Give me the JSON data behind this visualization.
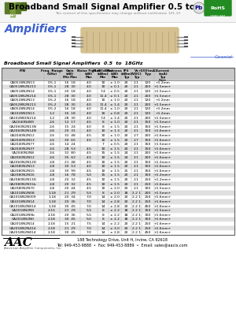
{
  "title": "Broadband Small Signal Amplifier 0.5 to 18GHz",
  "subtitle": "The content of this specification may change without notification 101-10",
  "section": "Amplifiers",
  "coaxial_label": "Coaxial",
  "table_title": "Broadband Small Signal Amplifiers  0.5  to  18GHz",
  "col_headers_line1": [
    "P/N",
    "Freq. Range",
    "Gain",
    "Noise Figure",
    "P1dB(dBm)",
    "Flatness",
    "IP3",
    "Vs",
    "+15V (mA)",
    "Current"
  ],
  "col_headers_line2": [
    "",
    "(GHz)",
    "(dB)",
    "(dB)",
    "(dBm)",
    "(dB)",
    "(dBm)",
    "(VDC)",
    "Typ",
    "(mA)"
  ],
  "col_headers_line3": [
    "",
    "",
    "Min  Max",
    "Max",
    "Min",
    "Max",
    "Typ",
    "Typ",
    "",
    "Typ"
  ],
  "col_headers_extra": [
    "",
    "",
    "",
    "",
    "",
    "",
    "",
    "",
    "",
    "Case"
  ],
  "rows": [
    [
      "CA0518N2N13",
      "0.5-1",
      "16  18",
      "4.0",
      "10",
      "± 1.0",
      "20",
      "2.1",
      "120",
      "+1.2mm"
    ],
    [
      "CA0518N2N213",
      "0.5-1",
      "28  30",
      "4.0",
      "10",
      "± 0.1",
      "20",
      "2.1",
      "200",
      "+1.5mm+"
    ],
    [
      "CA0518N2N14",
      "0.5-1",
      "20  18",
      "4.0",
      "7.4",
      "± 0.5",
      "20",
      "2.1",
      "120",
      "+1.5mm+"
    ],
    [
      "CA0518N2N214",
      "0.5-1",
      "28  30",
      "4.0",
      "11.4",
      "± 0.1",
      "20",
      "2.1",
      "200",
      "+1.5mm+"
    ],
    [
      "CA0528N2N13",
      "0.5-2",
      "16  18",
      "4.0",
      "10",
      "± 1.0",
      "20",
      "2.1",
      "120",
      "+1.2mm"
    ],
    [
      "CA0528N2N213",
      "0.5-2",
      "28  30",
      "4.0",
      "11.4",
      "± 1.4",
      "20",
      "2.1",
      "200",
      "+1.5mm+"
    ],
    [
      "CA0528N2N14",
      "0.5-2",
      "16  18",
      "4.0",
      "11.4",
      "± 1.0",
      "20",
      "2.1",
      "120",
      "+1.2mm"
    ],
    [
      "CA1028N1N13",
      "1-2",
      "16  18",
      "4.0",
      "10",
      "± 0.8",
      "20",
      "2.1",
      "120",
      "+1.2mm"
    ],
    [
      "CA1028N1N214",
      "1-2",
      "28  30",
      "4.0",
      "7.4",
      "± 1.4",
      "20",
      "2.1",
      "200",
      "+1.5mm+"
    ],
    [
      "CA2040N4N9",
      "2-6",
      "12  17",
      "4.5",
      "8",
      "± 1.0",
      "20",
      "2.1",
      "150",
      "+1.5mm+"
    ],
    [
      "CA2060N2N13N",
      "2-6",
      "15  24",
      "4.0",
      "8",
      "± 1.5",
      "20",
      "2.1",
      "150",
      "+1.5mm+"
    ],
    [
      "CA2060N2N14N",
      "2-6",
      "20  31",
      "4.0",
      "10",
      "± 1.3",
      "20",
      "2.1",
      "150",
      "+1.6mm+"
    ],
    [
      "CA2040N2N12",
      "2-6",
      "32  48",
      "4.5",
      "10",
      "± 1.0",
      "20",
      "2.7",
      "200",
      "+1.6mm+"
    ],
    [
      "CA2040N2N13",
      "2-6",
      "30  65",
      "4.5",
      "10",
      "± 1.5",
      "20",
      "2.7",
      "150",
      "+1.6mm+"
    ],
    [
      "CA2040N2N77",
      "2-6",
      "14  24",
      "",
      "7",
      "± 0.5",
      "20",
      "2.1",
      "150",
      "+1.5mm+"
    ],
    [
      "CA2040N2N37",
      "2-6",
      "28  53",
      "4.5",
      "10",
      "± 1.5",
      "20",
      "2.1",
      "150",
      "+1.6mm+"
    ],
    [
      "CA2040N2N8",
      "2-6",
      "32  80",
      "4.5",
      "15",
      "± 1.5",
      "24",
      "2.1",
      "200",
      "+1.6mm+"
    ],
    [
      "CA2060N2N12",
      "2-6",
      "35  62",
      "4.5",
      "10",
      "± 1.5",
      "24",
      "2.1",
      "200",
      "+1.6mm+"
    ],
    [
      "CA2060N2N12D",
      "2-8",
      "21  48",
      "4.5",
      "10",
      "± 1.5",
      "20",
      "2.1",
      "150",
      "+1.2mm+"
    ],
    [
      "CA2080N2N13",
      "2-8",
      "30  53",
      "4.0",
      "10",
      "± 1.5",
      "20",
      "2.1",
      "300",
      "+1.6mm+"
    ],
    [
      "CA2080N2N15",
      "2-8",
      "30  99",
      "4.5",
      "10",
      "± 1.5",
      "25",
      "2.1",
      "350",
      "+1.6mm+"
    ],
    [
      "CA2080N2N16",
      "2-8",
      "16  78",
      "5.0",
      "15",
      "± 1.5",
      "20",
      "2.1",
      "150",
      "+1.2mm+"
    ],
    [
      "CA2080N2N13D",
      "2-8",
      "20  32",
      "4.5",
      "10",
      "± 1.5",
      "20",
      "2.1",
      "250",
      "+1.2mm+"
    ],
    [
      "CA2080N2N15b",
      "2-8",
      "20  32",
      "4.5",
      "10",
      "± 1.5",
      "20",
      "2.1",
      "250",
      "+1.6mm+"
    ],
    [
      "CA2080N2N70",
      "2-8",
      "20  44",
      "4.5",
      "10",
      "± 2.0",
      "20",
      "2.1",
      "300",
      "+1.5mm+"
    ],
    [
      "CA1018N2N08",
      "1-18",
      "21  29",
      "5.5",
      "8",
      "± 2.0",
      "18",
      "2.2 1",
      "200",
      "+1.5mm+"
    ],
    [
      "CA1018N2N009",
      "1-18",
      "20  34",
      "7.0",
      "14",
      "± 2.0",
      "20",
      "2.2 1",
      "250",
      "+1.6mm+"
    ],
    [
      "CA1018N2N14",
      "1-18",
      "20  36",
      "7.0",
      "14",
      "± 2.8",
      "20",
      "2.2 1",
      "250",
      "+1.6mm+"
    ],
    [
      "CA1018N2N814",
      "1-18",
      "30  45",
      "7.0",
      "14",
      "± 2.8",
      "20",
      "2.2 1",
      "450",
      "+1.6mm+"
    ],
    [
      "CA2018N2N9",
      "2-15",
      "21  29",
      "5.5",
      "8",
      "± 2.2",
      "18",
      "2.2 1",
      "150",
      "+1.5mm+"
    ],
    [
      "CA2018N2N9b",
      "2-18",
      "20  36",
      "5.5",
      "8",
      "± 2.2",
      "18",
      "2.2 1",
      "300",
      "+1.6mm+"
    ],
    [
      "CA2018N2N0",
      "2-18",
      "30  45",
      "5.0",
      "8",
      "± 2.2",
      "18",
      "2.2 1",
      "350",
      "+1.6mm+"
    ],
    [
      "CA2018N2N14",
      "2-18",
      "15  21",
      "7.5",
      "14",
      "± 2.2",
      "20",
      "2.2 1",
      "250",
      "+1.6mm+"
    ],
    [
      "CA2018N2N414",
      "2-18",
      "21  29",
      "7.0",
      "14",
      "± 3.0",
      "20",
      "2.2 1",
      "250",
      "+1.6mm+"
    ],
    [
      "CA2018N2N814",
      "2-18",
      "30  45",
      "7.0",
      "14",
      "± 2.8",
      "20",
      "2.2 1",
      "450",
      "+1.6mm+"
    ]
  ],
  "footer_address": "188 Technology Drive, Unit H, Irvine, CA 92618",
  "footer_contact": "Tel: 949-453-9888  •  Fax: 949-453-8889  •  Email: sales@aacix.com",
  "bg_color": "#ffffff",
  "header_bg": "#c8c8c8",
  "row_even_color": "#ffffff",
  "row_odd_color": "#e0e0e0",
  "table_border_color": "#666666",
  "col_line_color": "#aaaaaa",
  "section_color": "#3a5fcd",
  "coaxial_color": "#3a5fcd",
  "title_fontsize": 7.5,
  "table_fontsize": 3.5
}
